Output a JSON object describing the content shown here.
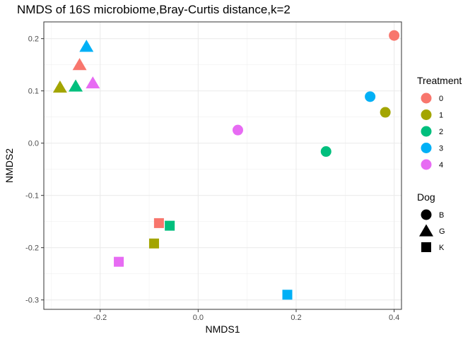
{
  "chart_data": {
    "type": "scatter",
    "title": "NMDS of 16S microbiome,Bray-Curtis distance,k=2",
    "xlabel": "NMDS1",
    "ylabel": "NMDS2",
    "xlim": [
      -0.315,
      0.415
    ],
    "ylim": [
      -0.318,
      0.232
    ],
    "x_ticks": [
      -0.2,
      0.0,
      0.2,
      0.4
    ],
    "y_ticks": [
      -0.3,
      -0.2,
      -0.1,
      0.0,
      0.1,
      0.2
    ],
    "x_tick_labels": [
      "-0.2",
      "0.0",
      "0.2",
      "0.4"
    ],
    "y_tick_labels": [
      "-0.3",
      "-0.2",
      "-0.1",
      "0.0",
      "0.1",
      "0.2"
    ],
    "grid": true,
    "legends": [
      {
        "title": "Treatment",
        "placement": "right",
        "entries": [
          {
            "label": "0",
            "color": "#F8766D"
          },
          {
            "label": "1",
            "color": "#A3A500"
          },
          {
            "label": "2",
            "color": "#00BF7D"
          },
          {
            "label": "3",
            "color": "#00B0F6"
          },
          {
            "label": "4",
            "color": "#E76BF3"
          }
        ]
      },
      {
        "title": "Dog",
        "placement": "right",
        "entries": [
          {
            "label": "B",
            "shape": "circle"
          },
          {
            "label": "G",
            "shape": "triangle"
          },
          {
            "label": "K",
            "shape": "square"
          }
        ]
      }
    ],
    "points": [
      {
        "x": 0.4,
        "y": 0.206,
        "treatment": "0",
        "dog": "B"
      },
      {
        "x": 0.382,
        "y": 0.059,
        "treatment": "1",
        "dog": "B"
      },
      {
        "x": 0.261,
        "y": -0.016,
        "treatment": "2",
        "dog": "B"
      },
      {
        "x": 0.351,
        "y": 0.089,
        "treatment": "3",
        "dog": "B"
      },
      {
        "x": 0.081,
        "y": 0.025,
        "treatment": "4",
        "dog": "B"
      },
      {
        "x": -0.242,
        "y": 0.15,
        "treatment": "0",
        "dog": "G"
      },
      {
        "x": -0.282,
        "y": 0.107,
        "treatment": "1",
        "dog": "G"
      },
      {
        "x": -0.25,
        "y": 0.109,
        "treatment": "2",
        "dog": "G"
      },
      {
        "x": -0.228,
        "y": 0.185,
        "treatment": "3",
        "dog": "G"
      },
      {
        "x": -0.215,
        "y": 0.115,
        "treatment": "4",
        "dog": "G"
      },
      {
        "x": -0.08,
        "y": -0.153,
        "treatment": "0",
        "dog": "K"
      },
      {
        "x": -0.09,
        "y": -0.192,
        "treatment": "1",
        "dog": "K"
      },
      {
        "x": -0.058,
        "y": -0.158,
        "treatment": "2",
        "dog": "K"
      },
      {
        "x": 0.182,
        "y": -0.29,
        "treatment": "3",
        "dog": "K"
      },
      {
        "x": -0.162,
        "y": -0.227,
        "treatment": "4",
        "dog": "K"
      }
    ]
  }
}
